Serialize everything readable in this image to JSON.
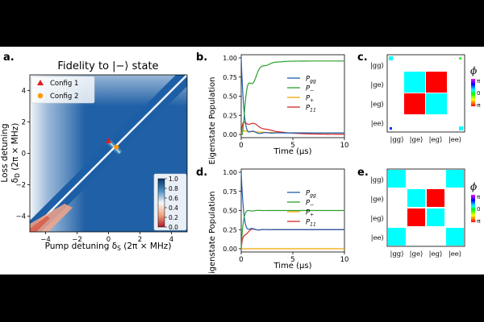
{
  "chart_data": [
    {
      "panel": "a.",
      "type": "heatmap",
      "title": "Fidelity to |−⟩ state",
      "xlabel": "Pump detuning  δ",
      "xlabel_sub": "S",
      "xlabel_unit": " (2π × MHz)",
      "ylabel_line1": "Loss detuning",
      "ylabel_line2": "δ",
      "ylabel_sub": "D",
      "ylabel_unit": " (2π × MHz)",
      "xlim": [
        -5,
        5
      ],
      "ylim": [
        -5,
        5
      ],
      "xticks": [
        "−4",
        "−2",
        "0",
        "2",
        "4"
      ],
      "yticks": [
        "−4",
        "−2",
        "0",
        "2",
        "4"
      ],
      "colorbar": {
        "ticks": [
          "1.0",
          "0.8",
          "0.6",
          "0.4",
          "0.2",
          "0.0"
        ],
        "range": [
          0,
          1
        ]
      },
      "legend": [
        {
          "label": "Config 1",
          "marker": "triangle",
          "color": "#e41a1c",
          "x": 0.0,
          "y": 0.8
        },
        {
          "label": "Config 2",
          "marker": "circle",
          "color": "#ff9900",
          "x": 0.5,
          "y": 0.4
        }
      ]
    },
    {
      "panel": "b.",
      "type": "line",
      "ylabel": "Eigenstate Population",
      "xlabel": "Time (μs)",
      "xlim": [
        0,
        10
      ],
      "ylim": [
        0,
        1
      ],
      "xticks": [
        "0",
        "5",
        "10"
      ],
      "yticks": [
        "0.00",
        "0.25",
        "0.50",
        "0.75",
        "1.00"
      ],
      "series": [
        {
          "name": "P",
          "sub": "gg",
          "color": "#1f5fb0"
        },
        {
          "name": "P",
          "sub": "−",
          "color": "#2ca02c"
        },
        {
          "name": "P",
          "sub": "+",
          "color": "#f0a800"
        },
        {
          "name": "P",
          "sub": "11",
          "color": "#d62728"
        }
      ]
    },
    {
      "panel": "d.",
      "type": "line",
      "ylabel": "Eigenstate Population",
      "xlabel": "Time (μs)",
      "xlim": [
        0,
        10
      ],
      "ylim": [
        0,
        1
      ],
      "xticks": [
        "0",
        "5",
        "10"
      ],
      "yticks": [
        "0.00",
        "0.25",
        "0.50",
        "0.75",
        "1.00"
      ],
      "series": [
        {
          "name": "P",
          "sub": "gg",
          "color": "#1f5fb0"
        },
        {
          "name": "P",
          "sub": "−",
          "color": "#2ca02c"
        },
        {
          "name": "P",
          "sub": "+",
          "color": "#f0a800"
        },
        {
          "name": "P",
          "sub": "11",
          "color": "#d62728"
        }
      ]
    },
    {
      "panel": "c.",
      "type": "heatmap",
      "basis": [
        "|gg⟩",
        "|ge⟩",
        "|eg⟩",
        "|ee⟩"
      ],
      "phase_label": "ϕ",
      "phase_ticks": [
        "π",
        "0",
        "-π"
      ]
    },
    {
      "panel": "e.",
      "type": "heatmap",
      "basis": [
        "|gg⟩",
        "|ge⟩",
        "|eg⟩",
        "|ee⟩"
      ],
      "phase_label": "ϕ",
      "phase_ticks": [
        "π",
        "0",
        "-π"
      ]
    }
  ]
}
